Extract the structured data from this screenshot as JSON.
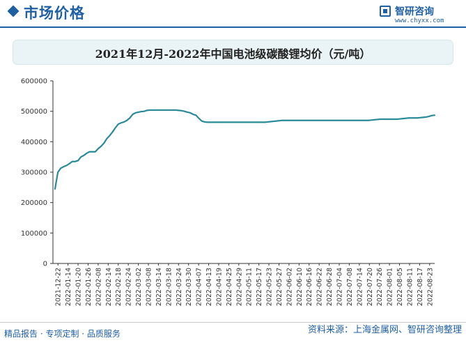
{
  "header": {
    "section_title": "市场价格",
    "brand_name": "智研咨询",
    "brand_url": "www.chyxx.com"
  },
  "footer": {
    "tagline": "精品报告 · 专项定制 · 品质服务",
    "source": "资料来源：上海金属网、智研咨询整理"
  },
  "colors": {
    "line": "#2a8a98",
    "brand": "#1f5fa3",
    "axis": "#333333"
  },
  "chart_data": {
    "type": "line",
    "title": "2021年12月-2022年中国电池级碳酸锂均价（元/吨）",
    "xlabel": "",
    "ylabel": "",
    "ylim": [
      0,
      600000
    ],
    "yticks": [
      0,
      100000,
      200000,
      300000,
      400000,
      500000,
      600000
    ],
    "grid": false,
    "x_tick_labels": [
      "2021-12-22",
      "2022-01-14",
      "2022-01-20",
      "2022-01-26",
      "2022-02-08",
      "2022-02-14",
      "2022-02-18",
      "2022-02-24",
      "2022-03-02",
      "2022-03-08",
      "2022-03-14",
      "2022-03-18",
      "2022-03-24",
      "2022-03-30",
      "2022-04-07",
      "2022-04-13",
      "2022-04-19",
      "2022-04-25",
      "2022-04-29",
      "2022-05-11",
      "2022-05-17",
      "2022-05-23",
      "2022-05-27",
      "2022-06-02",
      "2022-06-10",
      "2022-06-16",
      "2022-06-22",
      "2022-06-28",
      "2022-07-04",
      "2022-07-08",
      "2022-07-14",
      "2022-07-20",
      "2022-07-26",
      "2022-08-01",
      "2022-08-05",
      "2022-08-11",
      "2022-08-17",
      "2022-08-23"
    ],
    "series": [
      {
        "values": [
          245000,
          300000,
          313000,
          318000,
          322000,
          328000,
          335000,
          335000,
          338000,
          350000,
          355000,
          362000,
          367000,
          367000,
          367000,
          377000,
          385000,
          395000,
          410000,
          420000,
          432000,
          446000,
          458000,
          462000,
          465000,
          470000,
          478000,
          490000,
          495000,
          497000,
          499000,
          500000,
          503000,
          504000,
          504000,
          504000,
          504000,
          504000,
          504000,
          504000,
          504000,
          504000,
          504000,
          503000,
          502000,
          500000,
          497000,
          495000,
          490000,
          487000,
          477000,
          468000,
          465000,
          464000,
          464000,
          464000,
          464000,
          464000,
          464000,
          464000,
          464000,
          464000,
          464000,
          464000,
          464000,
          464000,
          464000,
          464000,
          464000,
          464000,
          464000,
          464000,
          464000,
          464000,
          465000,
          466000,
          467000,
          468000,
          469000,
          470000,
          470000,
          470000,
          470000,
          470000,
          470000,
          470000,
          470000,
          470000,
          470000,
          470000,
          470000,
          470000,
          470000,
          470000,
          470000,
          470000,
          470000,
          470000,
          470000,
          470000,
          470000,
          470000,
          470000,
          470000,
          470000,
          470000,
          470000,
          470000,
          470000,
          470000,
          471000,
          472000,
          473000,
          474000,
          474000,
          474000,
          474000,
          474000,
          474000,
          474000,
          475000,
          476000,
          477000,
          478000,
          478000,
          478000,
          478000,
          479000,
          480000,
          481000,
          483000,
          486000,
          487000
        ]
      }
    ]
  }
}
